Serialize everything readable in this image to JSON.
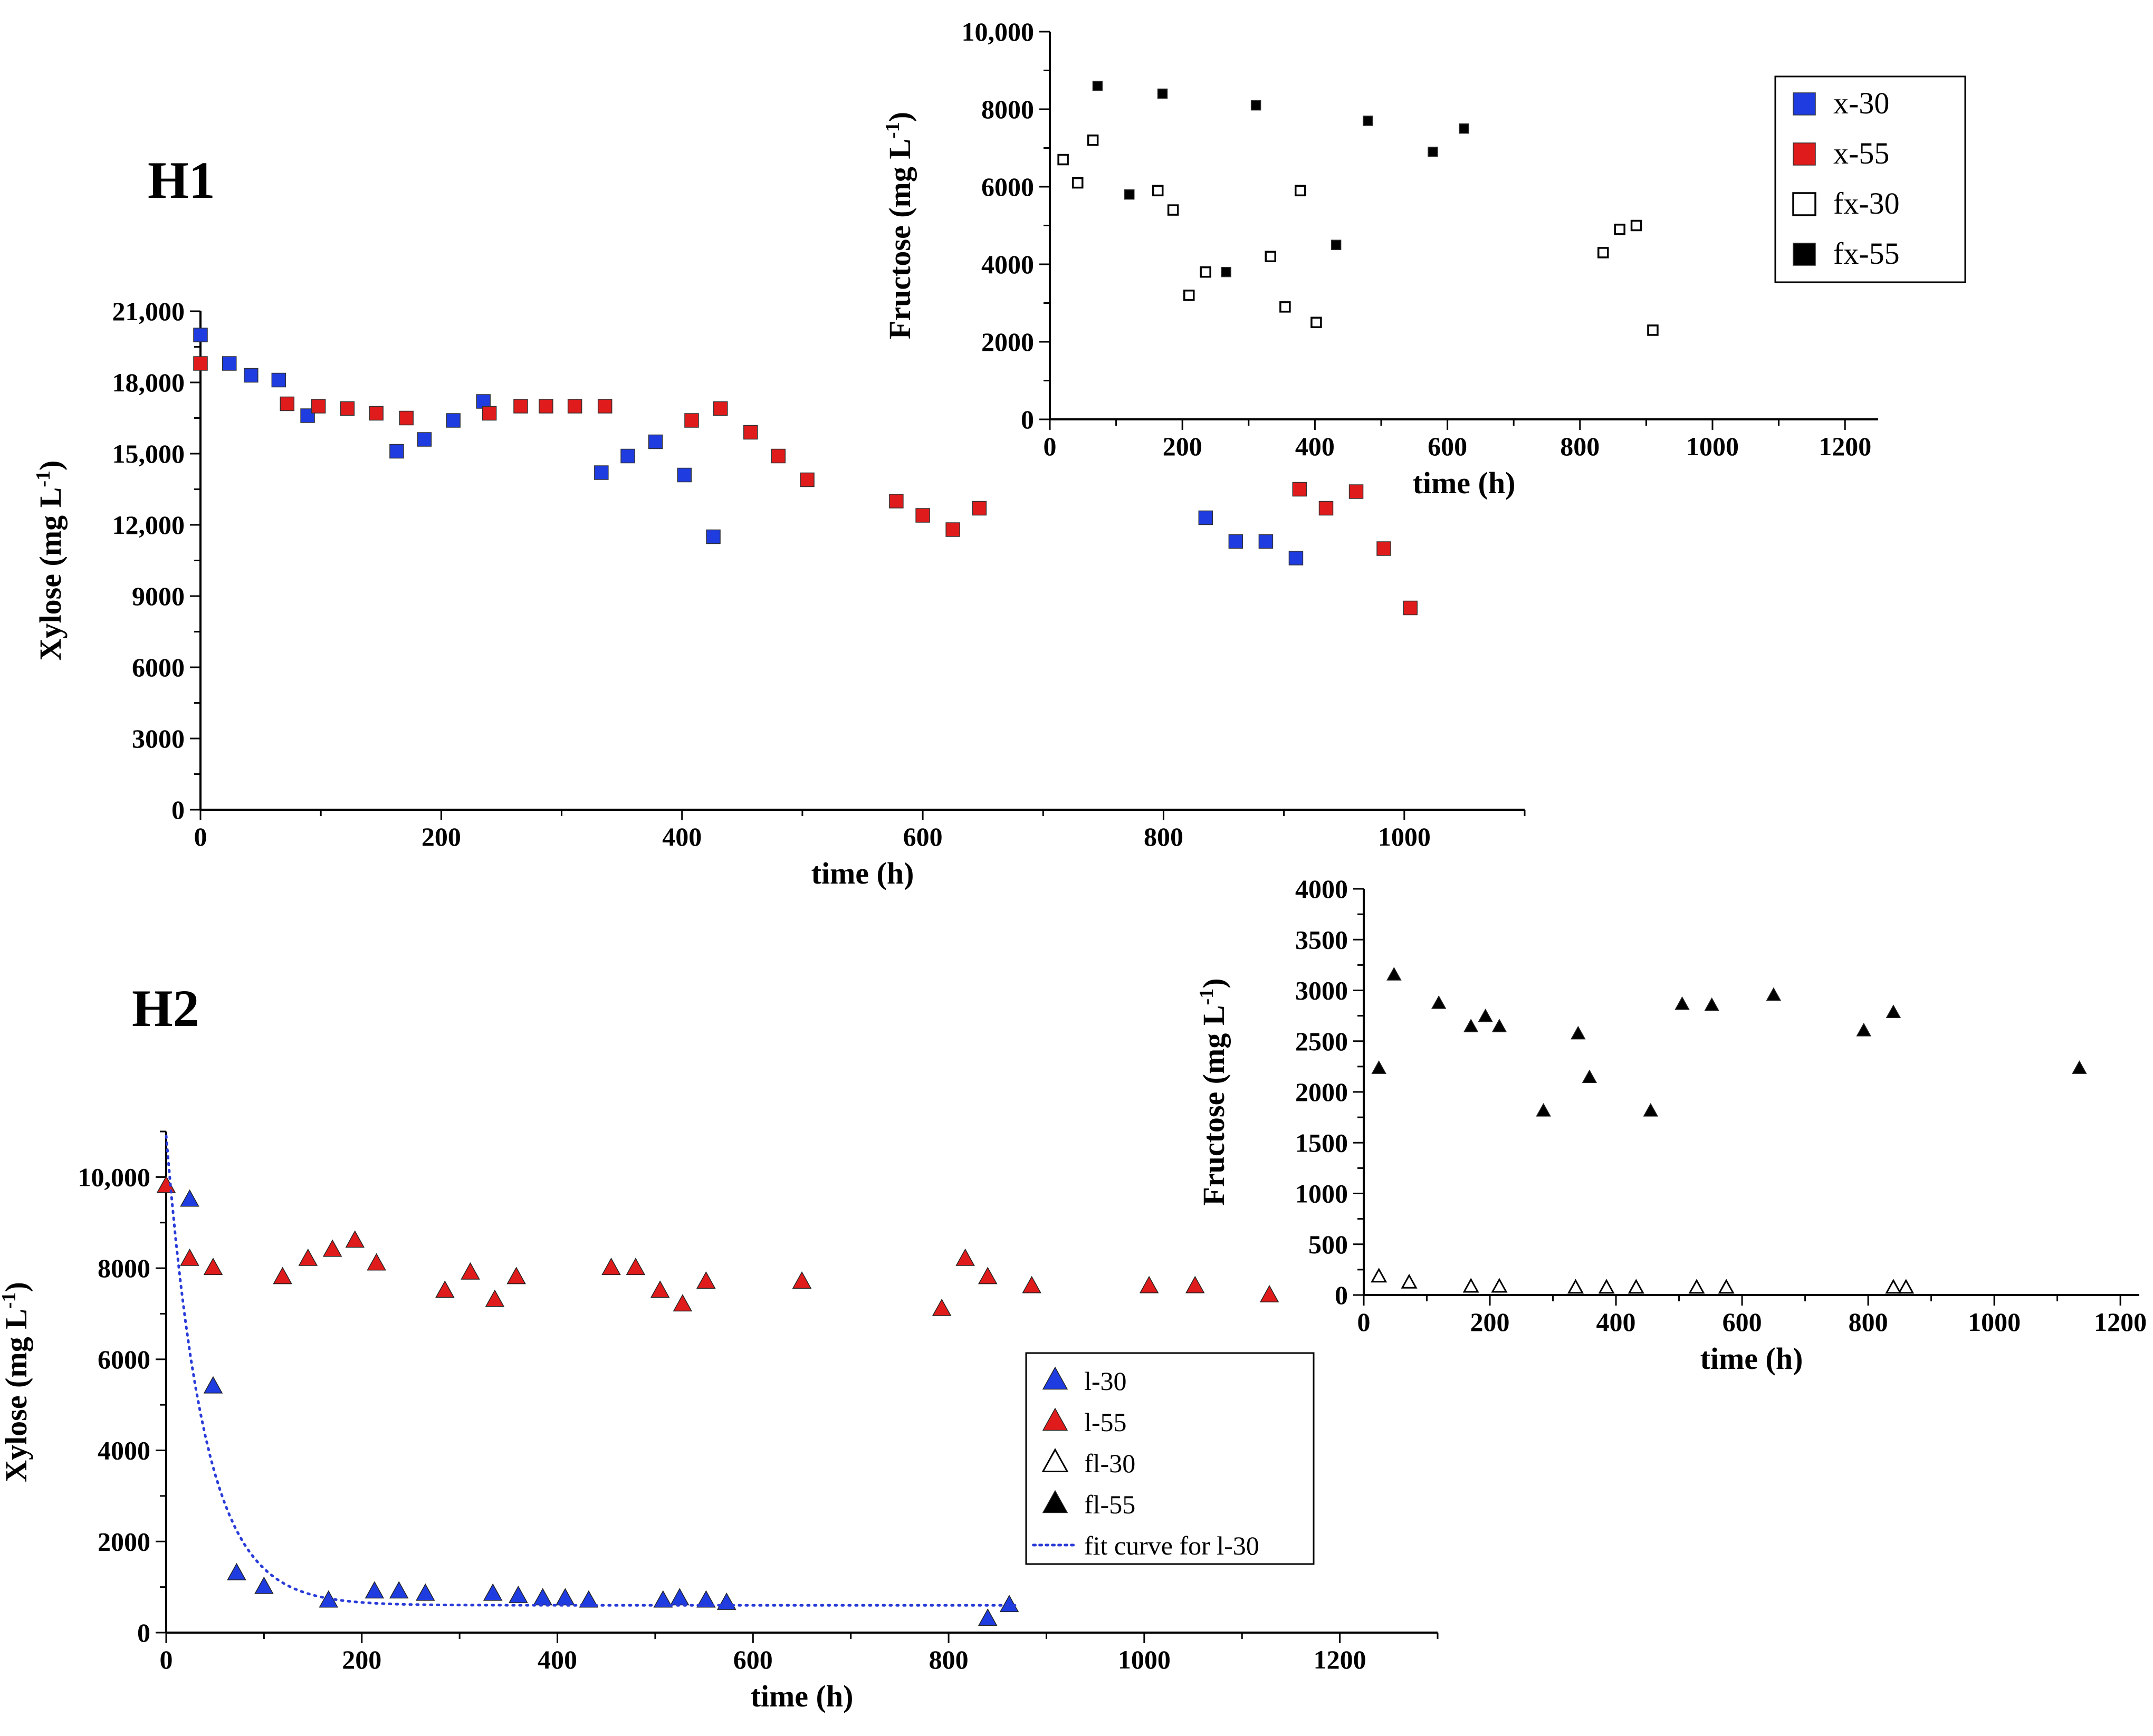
{
  "colors": {
    "blue": "#1f3ce0",
    "red": "#e01b1b",
    "black": "#000000",
    "fit": "#2a3cd8"
  },
  "panels": {
    "h1": "H1",
    "h2": "H2"
  },
  "chart_data": [
    {
      "id": "h1-main",
      "type": "scatter",
      "title": "",
      "xlabel": "time (h)",
      "ylabel": "Xylose (mg L",
      "ylabel_sup": "-1",
      "ylabel_close": ")",
      "xlim": [
        0,
        1100
      ],
      "ylim": [
        0,
        21000
      ],
      "xticks": [
        0,
        200,
        400,
        600,
        800,
        1000
      ],
      "xtick_labels": [
        "0",
        "200",
        "400",
        "600",
        "800",
        "1000"
      ],
      "yticks": [
        0,
        3000,
        6000,
        9000,
        12000,
        15000,
        18000,
        21000
      ],
      "ytick_labels": [
        "0",
        "3000",
        "6000",
        "9000",
        "12,000",
        "15,000",
        "18,000",
        "21,000"
      ],
      "series": [
        {
          "name": "x-30",
          "marker": "square-filled",
          "color": "#1f3ce0",
          "points": [
            [
              0,
              20000
            ],
            [
              24,
              18800
            ],
            [
              42,
              18300
            ],
            [
              65,
              18100
            ],
            [
              89,
              16600
            ],
            [
              163,
              15100
            ],
            [
              186,
              15600
            ],
            [
              210,
              16400
            ],
            [
              235,
              17200
            ],
            [
              333,
              14200
            ],
            [
              355,
              14900
            ],
            [
              378,
              15500
            ],
            [
              402,
              14100
            ],
            [
              426,
              11500
            ],
            [
              835,
              12300
            ],
            [
              860,
              11300
            ],
            [
              885,
              11300
            ],
            [
              910,
              10600
            ]
          ]
        },
        {
          "name": "x-55",
          "marker": "square-filled",
          "color": "#e01b1b",
          "points": [
            [
              0,
              18800
            ],
            [
              72,
              17100
            ],
            [
              98,
              17000
            ],
            [
              122,
              16900
            ],
            [
              146,
              16700
            ],
            [
              171,
              16500
            ],
            [
              240,
              16700
            ],
            [
              266,
              17000
            ],
            [
              287,
              17000
            ],
            [
              311,
              17000
            ],
            [
              336,
              17000
            ],
            [
              408,
              16400
            ],
            [
              432,
              16900
            ],
            [
              457,
              15900
            ],
            [
              480,
              14900
            ],
            [
              504,
              13900
            ],
            [
              578,
              13000
            ],
            [
              600,
              12400
            ],
            [
              625,
              11800
            ],
            [
              647,
              12700
            ],
            [
              913,
              13500
            ],
            [
              935,
              12700
            ],
            [
              960,
              13400
            ],
            [
              983,
              11000
            ],
            [
              1005,
              8500
            ]
          ]
        }
      ]
    },
    {
      "id": "h1-inset",
      "type": "scatter",
      "title": "",
      "xlabel": "time (h)",
      "ylabel": "Fructose (mg L",
      "ylabel_sup": "-1",
      "ylabel_close": ")",
      "xlim": [
        0,
        1250
      ],
      "ylim": [
        0,
        10000
      ],
      "xticks": [
        0,
        200,
        400,
        600,
        800,
        1000,
        1200
      ],
      "xtick_labels": [
        "0",
        "200",
        "400",
        "600",
        "800",
        "1000",
        "1200"
      ],
      "yticks": [
        0,
        2000,
        4000,
        6000,
        8000,
        10000
      ],
      "ytick_labels": [
        "0",
        "2000",
        "4000",
        "6000",
        "8000",
        "10,000"
      ],
      "legend": {
        "position": "top-right",
        "entries": [
          {
            "label": "x-30",
            "marker": "square-filled",
            "color": "#1f3ce0"
          },
          {
            "label": "x-55",
            "marker": "square-filled",
            "color": "#e01b1b"
          },
          {
            "label": "fx-30",
            "marker": "square-open",
            "color": "#000000"
          },
          {
            "label": "fx-55",
            "marker": "square-filled",
            "color": "#000000"
          }
        ]
      },
      "series": [
        {
          "name": "fx-30",
          "marker": "square-open",
          "color": "#000000",
          "points": [
            [
              20,
              6700
            ],
            [
              42,
              6100
            ],
            [
              65,
              7200
            ],
            [
              163,
              5900
            ],
            [
              186,
              5400
            ],
            [
              210,
              3200
            ],
            [
              235,
              3800
            ],
            [
              333,
              4200
            ],
            [
              355,
              2900
            ],
            [
              378,
              5900
            ],
            [
              402,
              2500
            ],
            [
              835,
              4300
            ],
            [
              860,
              4900
            ],
            [
              885,
              5000
            ],
            [
              910,
              2300
            ]
          ]
        },
        {
          "name": "fx-55",
          "marker": "square-filled",
          "color": "#000000",
          "points": [
            [
              72,
              8600
            ],
            [
              120,
              5800
            ],
            [
              170,
              8400
            ],
            [
              266,
              3800
            ],
            [
              311,
              8100
            ],
            [
              432,
              4500
            ],
            [
              480,
              7700
            ],
            [
              578,
              6900
            ],
            [
              625,
              7500
            ]
          ]
        }
      ]
    },
    {
      "id": "h2-main",
      "type": "scatter",
      "title": "",
      "xlabel": "time (h)",
      "ylabel": "Xylose (mg L",
      "ylabel_sup": "-1",
      "ylabel_close": ")",
      "xlim": [
        0,
        1300
      ],
      "ylim": [
        0,
        11000
      ],
      "xticks": [
        0,
        200,
        400,
        600,
        800,
        1000,
        1200
      ],
      "xtick_labels": [
        "0",
        "200",
        "400",
        "600",
        "800",
        "1000",
        "1200"
      ],
      "yticks": [
        0,
        2000,
        4000,
        6000,
        8000,
        10000
      ],
      "ytick_labels": [
        "0",
        "2000",
        "4000",
        "6000",
        "8000",
        "10,000"
      ],
      "legend": {
        "position": "right",
        "entries": [
          {
            "label": "l-30",
            "marker": "triangle-filled",
            "color": "#1f3ce0"
          },
          {
            "label": "l-55",
            "marker": "triangle-filled",
            "color": "#e01b1b"
          },
          {
            "label": "fl-30",
            "marker": "triangle-open",
            "color": "#000000"
          },
          {
            "label": "fl-55",
            "marker": "triangle-filled",
            "color": "#000000"
          },
          {
            "label": "fit curve for l-30",
            "marker": "dotted-line",
            "color": "#2a3cd8"
          }
        ]
      },
      "series": [
        {
          "name": "l-30",
          "marker": "triangle-filled",
          "color": "#1f3ce0",
          "points": [
            [
              24,
              9500
            ],
            [
              48,
              5400
            ],
            [
              72,
              1300
            ],
            [
              100,
              1000
            ],
            [
              166,
              700
            ],
            [
              213,
              900
            ],
            [
              238,
              900
            ],
            [
              265,
              850
            ],
            [
              334,
              850
            ],
            [
              360,
              800
            ],
            [
              385,
              750
            ],
            [
              408,
              750
            ],
            [
              432,
              700
            ],
            [
              508,
              700
            ],
            [
              525,
              750
            ],
            [
              552,
              700
            ],
            [
              573,
              650
            ],
            [
              840,
              300
            ],
            [
              862,
              600
            ]
          ]
        },
        {
          "name": "l-55",
          "marker": "triangle-filled",
          "color": "#e01b1b",
          "points": [
            [
              0,
              9800
            ],
            [
              24,
              8200
            ],
            [
              48,
              8000
            ],
            [
              119,
              7800
            ],
            [
              145,
              8200
            ],
            [
              170,
              8400
            ],
            [
              193,
              8600
            ],
            [
              215,
              8100
            ],
            [
              285,
              7500
            ],
            [
              311,
              7900
            ],
            [
              336,
              7300
            ],
            [
              358,
              7800
            ],
            [
              455,
              8000
            ],
            [
              480,
              8000
            ],
            [
              505,
              7500
            ],
            [
              528,
              7200
            ],
            [
              552,
              7700
            ],
            [
              650,
              7700
            ],
            [
              793,
              7100
            ],
            [
              817,
              8200
            ],
            [
              840,
              7800
            ],
            [
              885,
              7600
            ],
            [
              1005,
              7600
            ],
            [
              1052,
              7600
            ],
            [
              1128,
              7400
            ]
          ]
        },
        {
          "name": "fit curve for l-30",
          "marker": "dotted-line",
          "color": "#2a3cd8",
          "fit": {
            "a": 10300,
            "k": 0.0255,
            "c": 600,
            "x_range": [
              0,
              870
            ]
          }
        }
      ]
    },
    {
      "id": "h2-inset",
      "type": "scatter",
      "title": "",
      "xlabel": "time (h)",
      "ylabel": "Fructose (mg L",
      "ylabel_sup": "-1",
      "ylabel_close": ")",
      "xlim": [
        0,
        1230
      ],
      "ylim": [
        0,
        4000
      ],
      "xticks": [
        0,
        200,
        400,
        600,
        800,
        1000,
        1200
      ],
      "xtick_labels": [
        "0",
        "200",
        "400",
        "600",
        "800",
        "1000",
        "1200"
      ],
      "yticks": [
        0,
        500,
        1000,
        1500,
        2000,
        2500,
        3000,
        3500,
        4000
      ],
      "ytick_labels": [
        "0",
        "500",
        "1000",
        "1500",
        "2000",
        "2500",
        "3000",
        "3500",
        "4000"
      ],
      "series": [
        {
          "name": "fl-30",
          "marker": "triangle-open",
          "color": "#000000",
          "points": [
            [
              24,
              180
            ],
            [
              72,
              120
            ],
            [
              170,
              80
            ],
            [
              215,
              80
            ],
            [
              336,
              70
            ],
            [
              385,
              70
            ],
            [
              432,
              70
            ],
            [
              528,
              70
            ],
            [
              575,
              70
            ],
            [
              840,
              70
            ],
            [
              860,
              70
            ]
          ]
        },
        {
          "name": "fl-55",
          "marker": "triangle-filled",
          "color": "#000000",
          "points": [
            [
              24,
              2230
            ],
            [
              48,
              3150
            ],
            [
              119,
              2870
            ],
            [
              170,
              2640
            ],
            [
              193,
              2740
            ],
            [
              215,
              2640
            ],
            [
              285,
              1810
            ],
            [
              340,
              2570
            ],
            [
              358,
              2140
            ],
            [
              455,
              1810
            ],
            [
              505,
              2860
            ],
            [
              552,
              2850
            ],
            [
              650,
              2950
            ],
            [
              793,
              2600
            ],
            [
              840,
              2780
            ],
            [
              1135,
              2230
            ]
          ]
        }
      ]
    }
  ]
}
